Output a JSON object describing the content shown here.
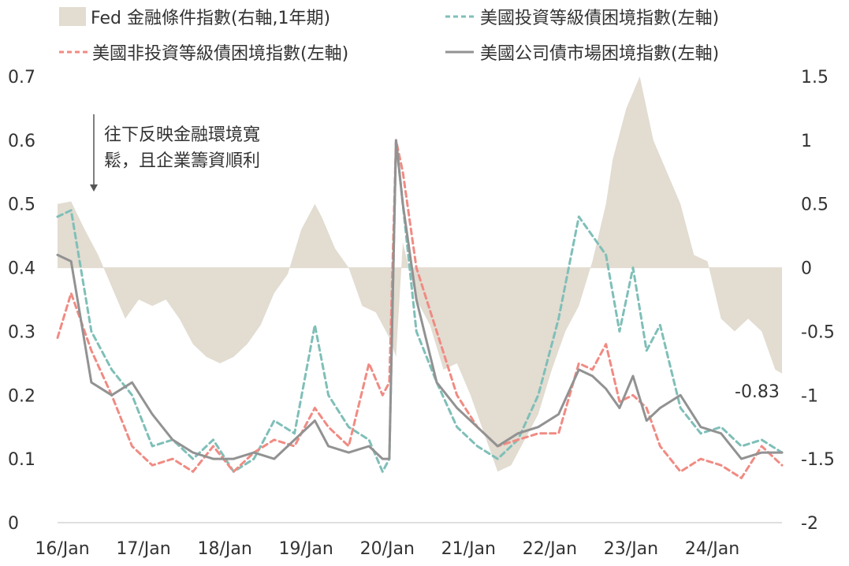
{
  "chart_data": {
    "type": "line",
    "title": "",
    "xlabel": "",
    "ylabel": "",
    "ylabel_right": "",
    "x_tick_labels": [
      "16/Jan",
      "17/Jan",
      "18/Jan",
      "19/Jan",
      "20/Jan",
      "21/Jan",
      "22/Jan",
      "23/Jan",
      "24/Jan"
    ],
    "x_range": [
      "2016-01",
      "2024-12"
    ],
    "ylim_left": [
      0,
      0.7
    ],
    "yticks_left": [
      "0",
      "0.1",
      "0.2",
      "0.3",
      "0.4",
      "0.5",
      "0.6",
      "0.7"
    ],
    "ylim_right": [
      -2,
      1.5
    ],
    "yticks_right": [
      "-2",
      "-1.5",
      "-1",
      "-0.5",
      "0",
      "0.5",
      "1",
      "1.5"
    ],
    "grid": false,
    "legend_position": "top",
    "annotation": {
      "text_line1": "往下反映金融環境寬",
      "text_line2": "鬆，且企業籌資順利"
    },
    "end_value_label": "-0.83",
    "series": [
      {
        "name": "Fed 金融條件指數(右軸,1年期)",
        "axis": "right",
        "style": "area",
        "color": "#e2dcd1",
        "x": [
          "2016-01",
          "2016-03",
          "2016-05",
          "2016-07",
          "2016-09",
          "2016-11",
          "2017-01",
          "2017-03",
          "2017-05",
          "2017-07",
          "2017-09",
          "2017-11",
          "2018-01",
          "2018-03",
          "2018-05",
          "2018-07",
          "2018-09",
          "2018-11",
          "2019-01",
          "2019-03",
          "2019-04",
          "2019-06",
          "2019-08",
          "2019-10",
          "2019-12",
          "2020-02",
          "2020-03",
          "2020-04",
          "2020-06",
          "2020-08",
          "2020-10",
          "2020-12",
          "2021-02",
          "2021-04",
          "2021-06",
          "2021-08",
          "2021-10",
          "2021-12",
          "2022-02",
          "2022-04",
          "2022-06",
          "2022-08",
          "2022-10",
          "2022-11",
          "2023-01",
          "2023-03",
          "2023-05",
          "2023-07",
          "2023-09",
          "2023-11",
          "2024-01",
          "2024-03",
          "2024-05",
          "2024-07",
          "2024-09",
          "2024-11",
          "2024-12"
        ],
        "values": [
          0.5,
          0.52,
          0.3,
          0.1,
          -0.15,
          -0.4,
          -0.25,
          -0.3,
          -0.25,
          -0.4,
          -0.6,
          -0.7,
          -0.75,
          -0.7,
          -0.6,
          -0.45,
          -0.2,
          -0.05,
          0.3,
          0.5,
          0.4,
          0.15,
          0.0,
          -0.3,
          -0.35,
          -0.55,
          -0.7,
          0.2,
          -0.25,
          -0.45,
          -0.8,
          -0.75,
          -1.0,
          -1.3,
          -1.6,
          -1.55,
          -1.35,
          -1.15,
          -0.8,
          -0.5,
          -0.3,
          0.05,
          0.5,
          0.85,
          1.25,
          1.5,
          1.0,
          0.75,
          0.5,
          0.1,
          0.05,
          -0.4,
          -0.5,
          -0.4,
          -0.5,
          -0.8,
          -0.83
        ]
      },
      {
        "name": "美國投資等級債困境指數(左軸)",
        "axis": "left",
        "style": "dashed",
        "color": "#7fbfb8",
        "x": [
          "2016-01",
          "2016-03",
          "2016-06",
          "2016-09",
          "2016-12",
          "2017-03",
          "2017-06",
          "2017-09",
          "2017-12",
          "2018-03",
          "2018-06",
          "2018-09",
          "2018-12",
          "2019-03",
          "2019-05",
          "2019-08",
          "2019-11",
          "2020-01",
          "2020-02",
          "2020-03",
          "2020-04",
          "2020-06",
          "2020-09",
          "2020-12",
          "2021-03",
          "2021-06",
          "2021-09",
          "2021-12",
          "2022-03",
          "2022-06",
          "2022-08",
          "2022-10",
          "2022-12",
          "2023-02",
          "2023-04",
          "2023-06",
          "2023-09",
          "2023-12",
          "2024-03",
          "2024-06",
          "2024-09",
          "2024-12"
        ],
        "values": [
          0.48,
          0.49,
          0.3,
          0.24,
          0.2,
          0.12,
          0.13,
          0.1,
          0.13,
          0.08,
          0.1,
          0.16,
          0.14,
          0.31,
          0.2,
          0.15,
          0.13,
          0.08,
          0.1,
          0.6,
          0.5,
          0.3,
          0.22,
          0.15,
          0.12,
          0.1,
          0.13,
          0.2,
          0.32,
          0.48,
          0.45,
          0.42,
          0.3,
          0.4,
          0.27,
          0.31,
          0.18,
          0.14,
          0.15,
          0.12,
          0.13,
          0.11
        ]
      },
      {
        "name": "美國非投資等級債困境指數(左軸)",
        "axis": "left",
        "style": "dashed",
        "color": "#f08b83",
        "x": [
          "2016-01",
          "2016-03",
          "2016-06",
          "2016-09",
          "2016-12",
          "2017-03",
          "2017-06",
          "2017-09",
          "2017-12",
          "2018-03",
          "2018-06",
          "2018-09",
          "2018-12",
          "2019-03",
          "2019-05",
          "2019-08",
          "2019-11",
          "2020-01",
          "2020-02",
          "2020-03",
          "2020-04",
          "2020-06",
          "2020-09",
          "2020-12",
          "2021-03",
          "2021-06",
          "2021-09",
          "2021-12",
          "2022-03",
          "2022-06",
          "2022-08",
          "2022-10",
          "2022-12",
          "2023-02",
          "2023-04",
          "2023-06",
          "2023-09",
          "2023-12",
          "2024-03",
          "2024-06",
          "2024-09",
          "2024-12"
        ],
        "values": [
          0.29,
          0.36,
          0.27,
          0.2,
          0.12,
          0.09,
          0.1,
          0.08,
          0.12,
          0.08,
          0.11,
          0.13,
          0.12,
          0.18,
          0.15,
          0.12,
          0.25,
          0.2,
          0.22,
          0.6,
          0.55,
          0.4,
          0.3,
          0.2,
          0.15,
          0.12,
          0.13,
          0.14,
          0.14,
          0.25,
          0.24,
          0.28,
          0.19,
          0.2,
          0.18,
          0.12,
          0.08,
          0.1,
          0.09,
          0.07,
          0.12,
          0.09
        ]
      },
      {
        "name": "美國公司債市場困境指數(左軸)",
        "axis": "left",
        "style": "solid",
        "color": "#929292",
        "x": [
          "2016-01",
          "2016-03",
          "2016-06",
          "2016-09",
          "2016-12",
          "2017-03",
          "2017-06",
          "2017-09",
          "2017-12",
          "2018-03",
          "2018-06",
          "2018-09",
          "2018-12",
          "2019-03",
          "2019-05",
          "2019-08",
          "2019-11",
          "2020-01",
          "2020-02",
          "2020-03",
          "2020-04",
          "2020-06",
          "2020-09",
          "2020-12",
          "2021-03",
          "2021-06",
          "2021-09",
          "2021-12",
          "2022-03",
          "2022-06",
          "2022-08",
          "2022-10",
          "2022-12",
          "2023-02",
          "2023-04",
          "2023-06",
          "2023-09",
          "2023-12",
          "2024-03",
          "2024-06",
          "2024-09",
          "2024-12"
        ],
        "values": [
          0.42,
          0.41,
          0.22,
          0.2,
          0.22,
          0.17,
          0.13,
          0.11,
          0.1,
          0.1,
          0.11,
          0.1,
          0.13,
          0.16,
          0.12,
          0.11,
          0.12,
          0.1,
          0.1,
          0.6,
          0.5,
          0.35,
          0.22,
          0.18,
          0.15,
          0.12,
          0.14,
          0.15,
          0.17,
          0.24,
          0.23,
          0.21,
          0.18,
          0.23,
          0.16,
          0.18,
          0.2,
          0.15,
          0.14,
          0.1,
          0.11,
          0.11
        ]
      }
    ]
  }
}
